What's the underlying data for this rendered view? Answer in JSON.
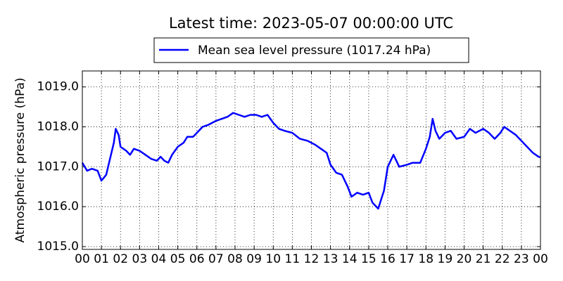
{
  "chart_data": {
    "type": "line",
    "title": "Latest time: 2023-05-07 00:00:00 UTC",
    "y_label": "Atmospheric pressure (hPa)",
    "x": [
      0,
      0.25,
      0.5,
      0.8,
      1.0,
      1.25,
      1.5,
      1.65,
      1.75,
      1.9,
      2.0,
      2.3,
      2.5,
      2.7,
      3.0,
      3.3,
      3.6,
      3.9,
      4.1,
      4.3,
      4.5,
      4.7,
      5.0,
      5.3,
      5.5,
      5.8,
      6.0,
      6.3,
      6.6,
      7.0,
      7.3,
      7.6,
      7.9,
      8.2,
      8.5,
      8.8,
      9.1,
      9.4,
      9.7,
      10.0,
      10.3,
      10.6,
      11.0,
      11.4,
      11.8,
      12.2,
      12.5,
      12.8,
      13.0,
      13.3,
      13.6,
      13.9,
      14.1,
      14.4,
      14.7,
      15.0,
      15.2,
      15.5,
      15.8,
      16.0,
      16.3,
      16.6,
      17.0,
      17.3,
      17.7,
      18.0,
      18.2,
      18.35,
      18.5,
      18.7,
      19.0,
      19.3,
      19.6,
      20.0,
      20.3,
      20.6,
      21.0,
      21.3,
      21.6,
      21.9,
      22.1,
      22.4,
      22.7,
      23.0,
      23.3,
      23.6,
      23.9,
      24.0
    ],
    "series": [
      {
        "name": "Mean sea level pressure (1017.24 hPa)",
        "color": "#0000ff",
        "values": [
          1017.1,
          1016.9,
          1016.95,
          1016.9,
          1016.65,
          1016.8,
          1017.3,
          1017.6,
          1017.95,
          1017.8,
          1017.5,
          1017.4,
          1017.3,
          1017.45,
          1017.4,
          1017.3,
          1017.2,
          1017.15,
          1017.25,
          1017.15,
          1017.1,
          1017.3,
          1017.5,
          1017.6,
          1017.75,
          1017.75,
          1017.85,
          1018.0,
          1018.05,
          1018.15,
          1018.2,
          1018.25,
          1018.35,
          1018.3,
          1018.25,
          1018.3,
          1018.3,
          1018.25,
          1018.3,
          1018.1,
          1017.95,
          1017.9,
          1017.85,
          1017.7,
          1017.65,
          1017.55,
          1017.45,
          1017.35,
          1017.05,
          1016.85,
          1016.8,
          1016.5,
          1016.25,
          1016.35,
          1016.3,
          1016.35,
          1016.1,
          1015.95,
          1016.4,
          1017.0,
          1017.3,
          1017.0,
          1017.05,
          1017.1,
          1017.1,
          1017.45,
          1017.75,
          1018.2,
          1017.9,
          1017.7,
          1017.85,
          1017.9,
          1017.7,
          1017.75,
          1017.95,
          1017.85,
          1017.95,
          1017.85,
          1017.7,
          1017.85,
          1018.0,
          1017.9,
          1017.8,
          1017.65,
          1017.5,
          1017.35,
          1017.25,
          1017.24
        ]
      }
    ],
    "xlim": [
      0,
      24
    ],
    "xticks": [
      {
        "value": 0,
        "label": "00"
      },
      {
        "value": 1,
        "label": "01"
      },
      {
        "value": 2,
        "label": "02"
      },
      {
        "value": 3,
        "label": "03"
      },
      {
        "value": 4,
        "label": "04"
      },
      {
        "value": 5,
        "label": "05"
      },
      {
        "value": 6,
        "label": "06"
      },
      {
        "value": 7,
        "label": "07"
      },
      {
        "value": 8,
        "label": "08"
      },
      {
        "value": 9,
        "label": "09"
      },
      10,
      11,
      12,
      13,
      14,
      15,
      16,
      17,
      18,
      19,
      20,
      21,
      22,
      23,
      {
        "value": 24,
        "label": "00"
      }
    ],
    "ylim": [
      1014.93,
      1019.4
    ],
    "yticks": [
      {
        "value": 1015,
        "label": "1015.0"
      },
      {
        "value": 1016,
        "label": "1016.0"
      },
      {
        "value": 1017,
        "label": "1017.0"
      },
      {
        "value": 1018,
        "label": "1018.0"
      },
      {
        "value": 1019,
        "label": "1019.0"
      }
    ],
    "grid": true,
    "legend": "top"
  }
}
